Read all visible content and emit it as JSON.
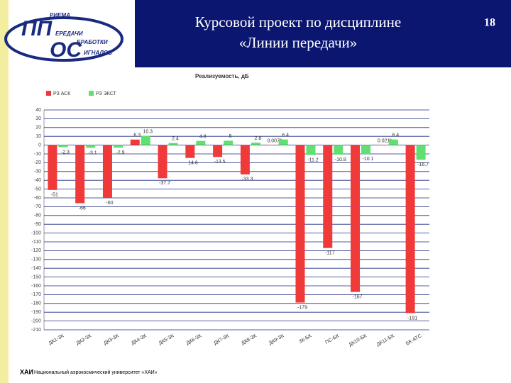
{
  "slide": {
    "title_line1": "Курсовой проект по дисциплине",
    "title_line2": "«Линии передачи»",
    "page": "18",
    "logo": {
      "letters1": "ПП",
      "letters2": "ОС",
      "words": [
        "РИЕМА",
        "ЕРЕДАЧИ",
        "БРАБОТКИ",
        "ИГНАЛОВ"
      ]
    },
    "footer_logo": "ХАИ",
    "footer": "Национальный аэрокосмический университет «ХАИ»"
  },
  "chart_data": {
    "type": "bar",
    "title": "Реализуемость, дБ",
    "categories": [
      "ДК1-ЗК",
      "ДК2-ЗК",
      "ДК3-ЗК",
      "ДК4-ЗК",
      "ДК5-ЗК",
      "ДК6-ЗК",
      "ДК7-ЗК",
      "ДК8-ЗК",
      "ДК9-ЗК",
      "ЗК-БК",
      "ПС-БК",
      "ДК10-БК",
      "ДК11-БК",
      "БК-АТС"
    ],
    "series": [
      {
        "name": "РЗ АСК",
        "color": "#f03a3a",
        "values": [
          -51,
          -66,
          -60,
          6.3,
          -37.7,
          -14.6,
          -13.5,
          -33.3,
          0.0071,
          -179,
          -117,
          -167,
          0.0211,
          -191
        ]
      },
      {
        "name": "РЗ ЭКСТ",
        "color": "#5fe070",
        "values": [
          -2.3,
          -3.1,
          -2.9,
          10.3,
          2.4,
          4.8,
          5,
          2.8,
          6.4,
          -11.2,
          -10.8,
          -10.1,
          6.4,
          -16.7
        ]
      }
    ],
    "ylim": [
      -210,
      40
    ],
    "yticks": [
      40,
      30,
      20,
      10,
      0,
      -10,
      -20,
      -30,
      -40,
      -50,
      -60,
      -70,
      -80,
      -90,
      -100,
      -110,
      -120,
      -130,
      -140,
      -150,
      -160,
      -170,
      -180,
      -190,
      -200,
      -210
    ],
    "grid": true
  }
}
